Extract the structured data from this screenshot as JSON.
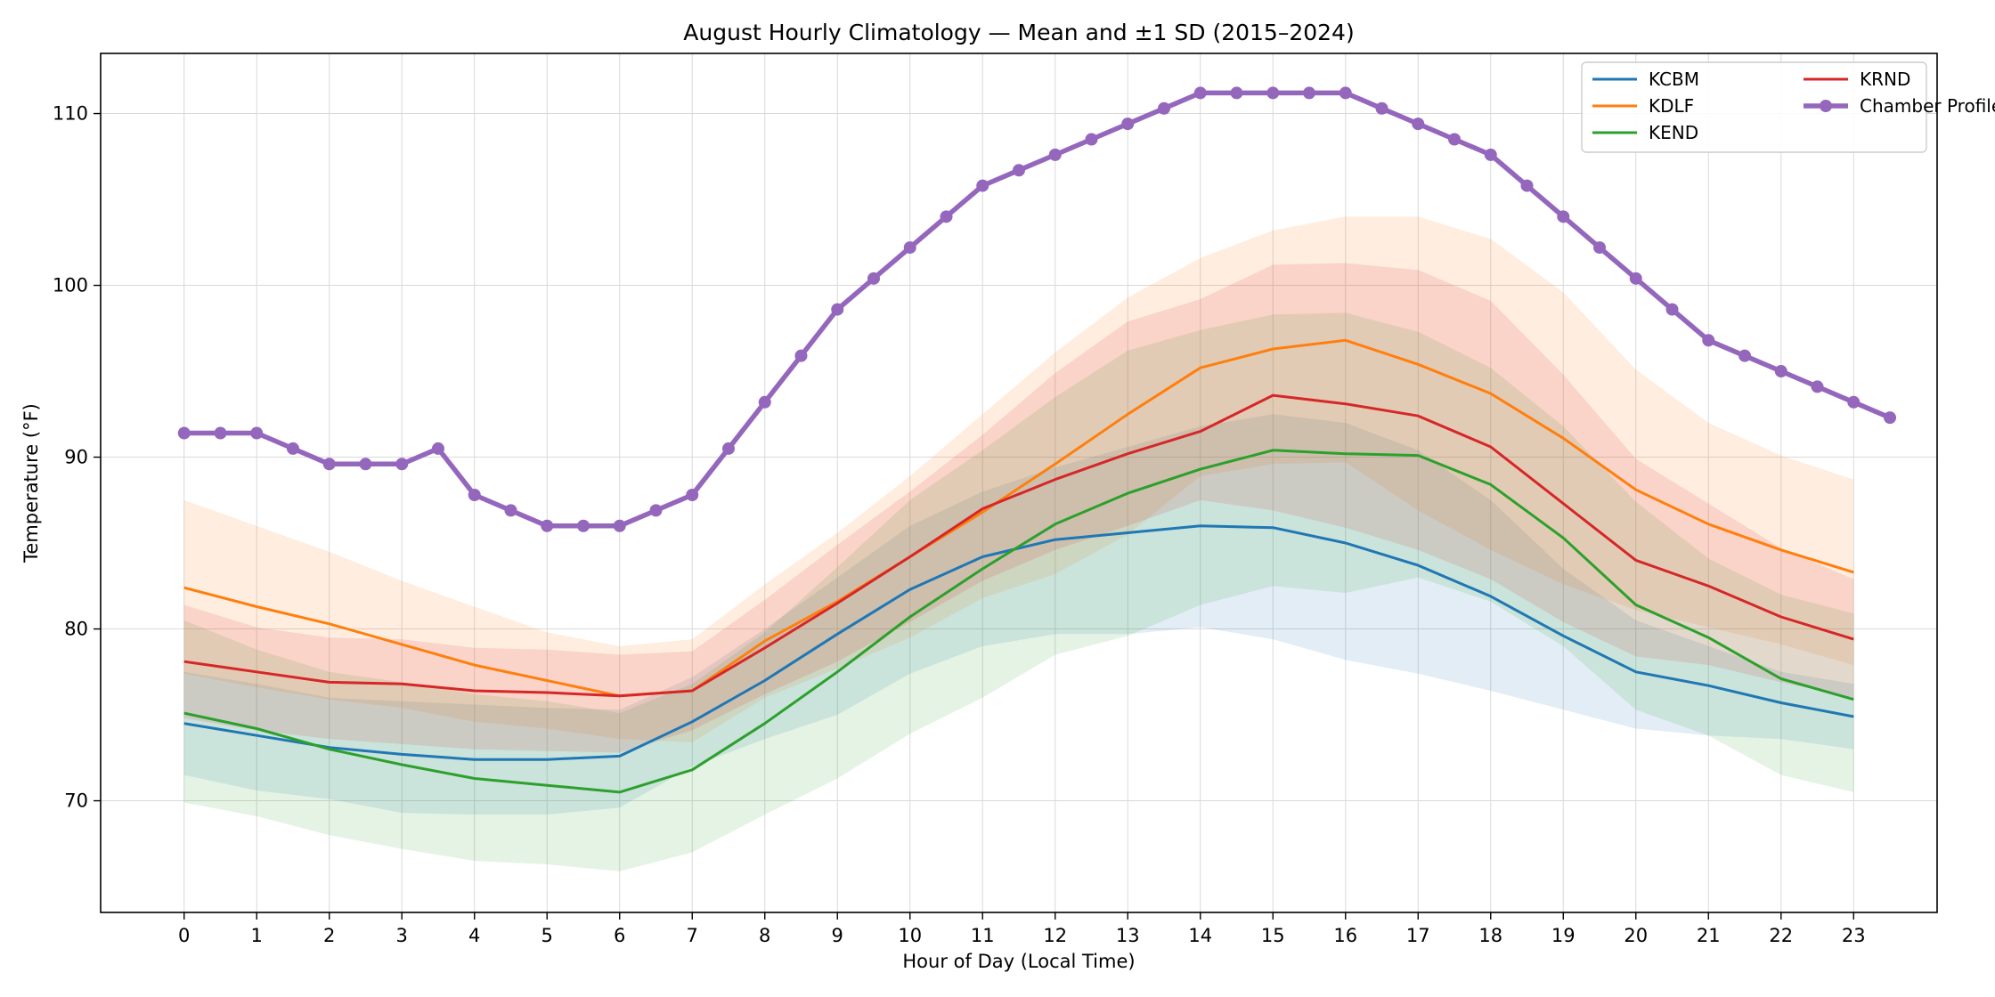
{
  "chart_data": {
    "type": "line",
    "title": "August Hourly Climatology — Mean and ±1 SD (2015–2024)",
    "xlabel": "Hour of Day (Local Time)",
    "ylabel": "Temperature (°F)",
    "xlim": [
      -1.15,
      24.15
    ],
    "ylim": [
      63.5,
      113.5
    ],
    "xticks": [
      0,
      1,
      2,
      3,
      4,
      5,
      6,
      7,
      8,
      9,
      10,
      11,
      12,
      13,
      14,
      15,
      16,
      17,
      18,
      19,
      20,
      21,
      22,
      23
    ],
    "yticks": [
      70,
      80,
      90,
      100,
      110
    ],
    "grid": true,
    "legend_position": "top-right",
    "hours": [
      0,
      1,
      2,
      3,
      4,
      5,
      6,
      7,
      8,
      9,
      10,
      11,
      12,
      13,
      14,
      15,
      16,
      17,
      18,
      19,
      20,
      21,
      22,
      23
    ],
    "series": [
      {
        "name": "KCBM",
        "color": "#1f77b4",
        "mean": [
          74.5,
          73.8,
          73.1,
          72.7,
          72.4,
          72.4,
          72.6,
          74.6,
          77.0,
          79.7,
          82.3,
          84.2,
          85.2,
          85.6,
          86.0,
          85.9,
          85.0,
          83.7,
          81.9,
          79.6,
          77.5,
          76.7,
          75.7,
          74.9
        ],
        "upper": [
          77.5,
          76.8,
          76.0,
          75.8,
          75.6,
          75.4,
          75.3,
          77.2,
          80.0,
          83.0,
          86.0,
          88.0,
          89.4,
          90.6,
          91.8,
          92.5,
          92.0,
          90.4,
          87.5,
          83.5,
          80.5,
          79.0,
          77.5,
          76.8
        ],
        "lower": [
          71.5,
          70.6,
          70.1,
          69.3,
          69.2,
          69.2,
          69.6,
          72.0,
          73.6,
          75.0,
          77.4,
          79.0,
          79.7,
          79.7,
          80.1,
          79.4,
          78.2,
          77.4,
          76.4,
          75.3,
          74.2,
          73.8,
          73.6,
          73.0
        ]
      },
      {
        "name": "KDLF",
        "color": "#ff7f0e",
        "mean": [
          82.4,
          81.3,
          80.3,
          79.1,
          77.9,
          77.0,
          76.1,
          76.4,
          79.3,
          81.6,
          84.2,
          86.8,
          89.6,
          92.5,
          95.2,
          96.3,
          96.8,
          95.4,
          93.7,
          91.1,
          88.1,
          86.1,
          84.6,
          83.3
        ],
        "upper": [
          87.5,
          86.0,
          84.5,
          82.8,
          81.3,
          79.8,
          79.0,
          79.4,
          82.6,
          85.6,
          88.9,
          92.5,
          96.1,
          99.3,
          101.6,
          103.2,
          104.0,
          104.0,
          102.7,
          99.6,
          95.1,
          92.0,
          90.1,
          88.7
        ],
        "lower": [
          77.4,
          76.6,
          75.9,
          75.4,
          74.6,
          74.2,
          73.6,
          73.4,
          76.0,
          77.7,
          79.5,
          81.8,
          83.2,
          85.5,
          88.9,
          89.6,
          89.7,
          86.9,
          84.6,
          82.6,
          81.1,
          80.1,
          79.1,
          77.9
        ]
      },
      {
        "name": "KEND",
        "color": "#2ca02c",
        "mean": [
          75.1,
          74.2,
          73.0,
          72.1,
          71.3,
          70.9,
          70.5,
          71.8,
          74.5,
          77.5,
          80.7,
          83.5,
          86.1,
          87.9,
          89.3,
          90.4,
          90.2,
          90.1,
          88.4,
          85.3,
          81.4,
          79.5,
          77.1,
          75.9
        ],
        "upper": [
          80.5,
          78.8,
          77.5,
          76.9,
          76.2,
          75.8,
          75.1,
          76.8,
          79.8,
          83.6,
          87.5,
          90.4,
          93.5,
          96.2,
          97.4,
          98.3,
          98.4,
          97.3,
          95.2,
          91.8,
          87.4,
          84.1,
          82.0,
          80.9
        ],
        "lower": [
          69.9,
          69.1,
          68.0,
          67.2,
          66.5,
          66.3,
          65.9,
          67.0,
          69.2,
          71.3,
          73.9,
          76.0,
          78.5,
          79.6,
          81.4,
          82.5,
          82.1,
          83.0,
          81.6,
          79.0,
          75.3,
          73.8,
          71.5,
          70.5
        ]
      },
      {
        "name": "KRND",
        "color": "#d62728",
        "mean": [
          78.1,
          77.5,
          76.9,
          76.8,
          76.4,
          76.3,
          76.1,
          76.4,
          78.9,
          81.5,
          84.2,
          87.0,
          88.7,
          90.2,
          91.5,
          93.6,
          93.1,
          92.4,
          90.6,
          87.3,
          84.0,
          82.5,
          80.7,
          79.4
        ],
        "upper": [
          81.4,
          80.1,
          79.5,
          79.4,
          78.9,
          78.8,
          78.5,
          78.7,
          81.7,
          84.9,
          88.0,
          91.3,
          94.9,
          97.9,
          99.2,
          101.2,
          101.3,
          100.9,
          99.1,
          94.8,
          89.9,
          87.3,
          84.7,
          82.9
        ],
        "lower": [
          74.8,
          74.1,
          73.6,
          73.3,
          73.0,
          72.9,
          72.8,
          74.1,
          76.2,
          78.1,
          80.4,
          82.8,
          84.6,
          86.0,
          87.5,
          86.9,
          85.9,
          84.6,
          82.9,
          80.4,
          78.4,
          77.9,
          76.9,
          76.0
        ]
      }
    ],
    "chamber_profile": {
      "name": "Chamber Profile",
      "color": "#9467bd",
      "x": [
        0,
        0.5,
        1,
        1.5,
        2,
        2.5,
        3,
        3.5,
        4,
        4.5,
        5,
        5.5,
        6,
        6.5,
        7,
        7.5,
        8,
        8.5,
        9,
        9.5,
        10,
        10.5,
        11,
        11.5,
        12,
        12.5,
        13,
        13.5,
        14,
        14.5,
        15,
        15.5,
        16,
        16.5,
        17,
        17.5,
        18,
        18.5,
        19,
        19.5,
        20,
        20.5,
        21,
        21.5,
        22,
        22.5,
        23,
        23.5
      ],
      "y": [
        91.4,
        91.4,
        91.4,
        90.5,
        89.6,
        89.6,
        89.6,
        90.5,
        87.8,
        86.9,
        86.0,
        86.0,
        86.0,
        86.9,
        87.8,
        90.5,
        93.2,
        95.9,
        98.6,
        100.4,
        102.2,
        104.0,
        105.8,
        106.7,
        107.6,
        108.5,
        109.4,
        110.3,
        111.2,
        111.2,
        111.2,
        111.2,
        111.2,
        110.3,
        109.4,
        108.5,
        107.6,
        105.8,
        104.0,
        102.2,
        100.4,
        98.6,
        96.8,
        95.9,
        95.0,
        94.1,
        93.2,
        92.3
      ]
    }
  }
}
